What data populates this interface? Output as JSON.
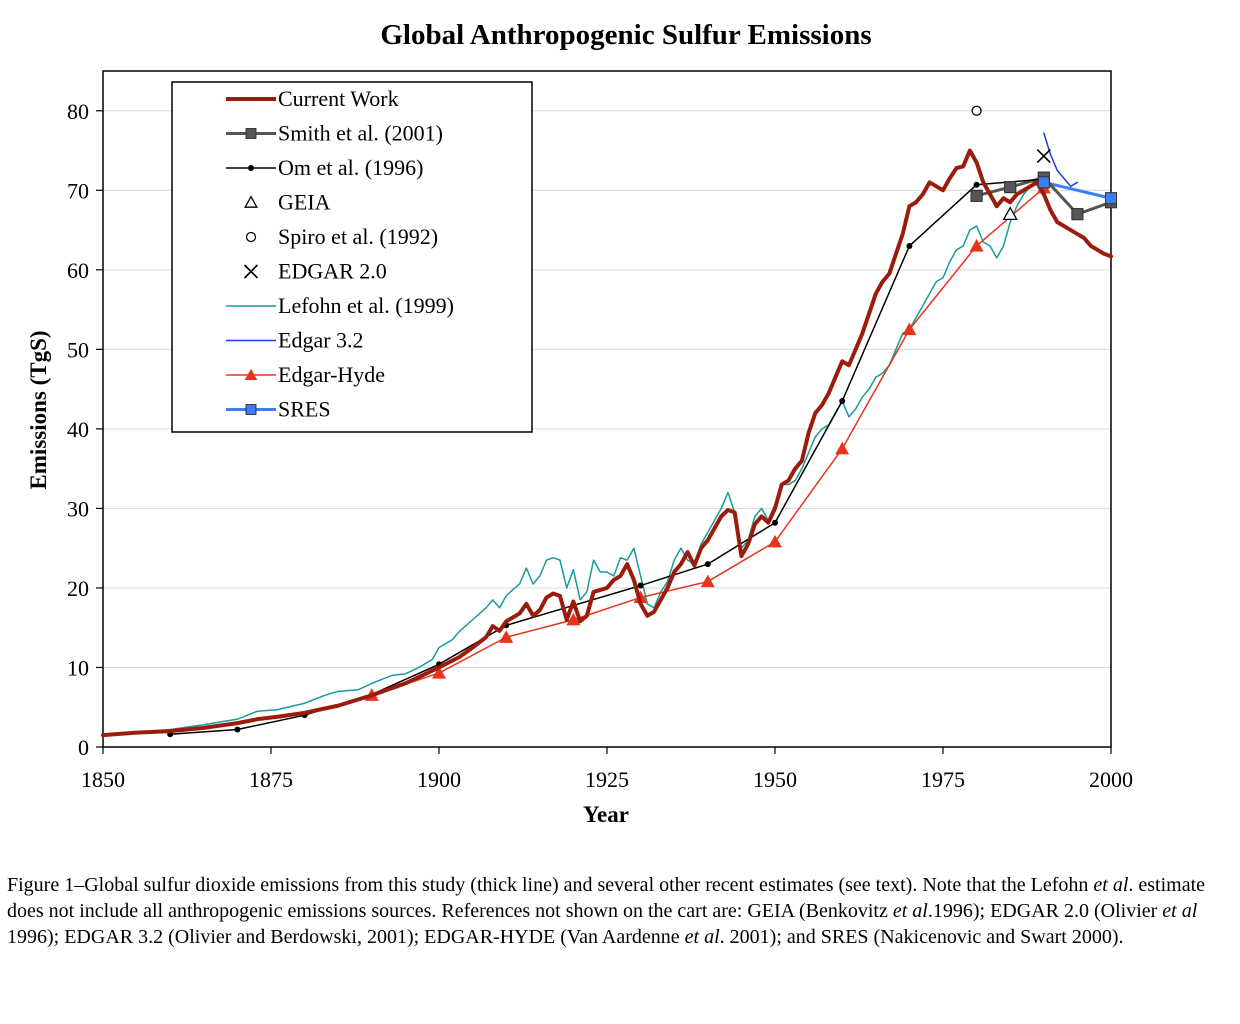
{
  "chart_data": {
    "type": "line",
    "title": "Global Anthropogenic Sulfur Emissions",
    "xlabel": "Year",
    "ylabel": "Emissions (TgS)",
    "xlim": [
      1850,
      2000
    ],
    "ylim": [
      0,
      85
    ],
    "xticks": [
      1850,
      1875,
      1900,
      1925,
      1950,
      1975,
      2000
    ],
    "yticks": [
      0,
      10,
      20,
      30,
      40,
      50,
      60,
      70,
      80
    ],
    "grid": "horizontal",
    "legend_position": "top-left",
    "series": [
      {
        "name": "Current Work",
        "style": "thick-line",
        "color": "#9b1c0c",
        "points": [
          [
            1850,
            1.5
          ],
          [
            1855,
            1.8
          ],
          [
            1860,
            2.0
          ],
          [
            1865,
            2.4
          ],
          [
            1870,
            3.0
          ],
          [
            1873,
            3.5
          ],
          [
            1876,
            3.8
          ],
          [
            1880,
            4.3
          ],
          [
            1885,
            5.2
          ],
          [
            1890,
            6.5
          ],
          [
            1895,
            8.0
          ],
          [
            1900,
            10.0
          ],
          [
            1903,
            11.3
          ],
          [
            1905,
            12.5
          ],
          [
            1907,
            13.8
          ],
          [
            1908,
            15.2
          ],
          [
            1909,
            14.6
          ],
          [
            1910,
            15.8
          ],
          [
            1912,
            16.8
          ],
          [
            1913,
            18.0
          ],
          [
            1914,
            16.5
          ],
          [
            1915,
            17.2
          ],
          [
            1916,
            18.8
          ],
          [
            1917,
            19.3
          ],
          [
            1918,
            19.0
          ],
          [
            1919,
            16.0
          ],
          [
            1920,
            18.3
          ],
          [
            1921,
            15.8
          ],
          [
            1922,
            16.5
          ],
          [
            1923,
            19.5
          ],
          [
            1925,
            20.0
          ],
          [
            1926,
            21.0
          ],
          [
            1927,
            21.5
          ],
          [
            1928,
            23.0
          ],
          [
            1929,
            21.0
          ],
          [
            1930,
            18.0
          ],
          [
            1931,
            16.5
          ],
          [
            1932,
            17.0
          ],
          [
            1933,
            18.5
          ],
          [
            1934,
            20.0
          ],
          [
            1935,
            22.0
          ],
          [
            1936,
            23.0
          ],
          [
            1937,
            24.5
          ],
          [
            1938,
            22.8
          ],
          [
            1939,
            25.0
          ],
          [
            1940,
            26.0
          ],
          [
            1941,
            27.5
          ],
          [
            1942,
            29.0
          ],
          [
            1943,
            29.8
          ],
          [
            1944,
            29.5
          ],
          [
            1945,
            24.0
          ],
          [
            1946,
            25.5
          ],
          [
            1947,
            28.0
          ],
          [
            1948,
            29.0
          ],
          [
            1949,
            28.2
          ],
          [
            1950,
            30.0
          ],
          [
            1951,
            33.0
          ],
          [
            1952,
            33.5
          ],
          [
            1953,
            35.0
          ],
          [
            1954,
            36.0
          ],
          [
            1955,
            39.5
          ],
          [
            1956,
            42.0
          ],
          [
            1957,
            43.0
          ],
          [
            1958,
            44.5
          ],
          [
            1959,
            46.5
          ],
          [
            1960,
            48.5
          ],
          [
            1961,
            48.0
          ],
          [
            1962,
            50.0
          ],
          [
            1963,
            52.0
          ],
          [
            1964,
            54.5
          ],
          [
            1965,
            57.0
          ],
          [
            1966,
            58.5
          ],
          [
            1967,
            59.5
          ],
          [
            1968,
            62.0
          ],
          [
            1969,
            64.5
          ],
          [
            1970,
            68.0
          ],
          [
            1971,
            68.5
          ],
          [
            1972,
            69.5
          ],
          [
            1973,
            71.0
          ],
          [
            1974,
            70.5
          ],
          [
            1975,
            70.0
          ],
          [
            1976,
            71.5
          ],
          [
            1977,
            72.8
          ],
          [
            1978,
            73.0
          ],
          [
            1979,
            75.0
          ],
          [
            1980,
            73.5
          ],
          [
            1981,
            71.0
          ],
          [
            1982,
            69.5
          ],
          [
            1983,
            68.0
          ],
          [
            1984,
            69.0
          ],
          [
            1985,
            68.5
          ],
          [
            1986,
            69.5
          ],
          [
            1987,
            70.0
          ],
          [
            1988,
            70.5
          ],
          [
            1989,
            71.0
          ],
          [
            1990,
            69.5
          ],
          [
            1991,
            67.5
          ],
          [
            1992,
            66.0
          ],
          [
            1993,
            65.5
          ],
          [
            1994,
            65.0
          ],
          [
            1995,
            64.5
          ],
          [
            1996,
            64.0
          ],
          [
            1997,
            63.0
          ],
          [
            1998,
            62.5
          ],
          [
            1999,
            62.0
          ],
          [
            2000,
            61.7
          ]
        ]
      },
      {
        "name": "Smith et al. (2001)",
        "style": "line-square",
        "color": "#555555",
        "points": [
          [
            1980,
            69.3
          ],
          [
            1985,
            70.4
          ],
          [
            1990,
            71.6
          ],
          [
            1995,
            67.0
          ],
          [
            2000,
            68.5
          ]
        ]
      },
      {
        "name": "Om et al. (1996)",
        "style": "line-dot",
        "color": "#000000",
        "points": [
          [
            1860,
            1.6
          ],
          [
            1870,
            2.2
          ],
          [
            1880,
            4.0
          ],
          [
            1890,
            6.6
          ],
          [
            1900,
            10.4
          ],
          [
            1910,
            15.3
          ],
          [
            1920,
            17.8
          ],
          [
            1930,
            20.3
          ],
          [
            1940,
            23.0
          ],
          [
            1950,
            28.2
          ],
          [
            1960,
            43.5
          ],
          [
            1970,
            63.0
          ],
          [
            1980,
            70.7
          ],
          [
            1990,
            71.4
          ]
        ]
      },
      {
        "name": "GEIA",
        "style": "open-triangle",
        "color": "#000000",
        "points": [
          [
            1985,
            67.0
          ]
        ]
      },
      {
        "name": "Spiro et al. (1992)",
        "style": "open-circle",
        "color": "#000000",
        "points": [
          [
            1980,
            80.0
          ]
        ]
      },
      {
        "name": "EDGAR 2.0",
        "style": "cross",
        "color": "#000000",
        "points": [
          [
            1990,
            74.3
          ]
        ]
      },
      {
        "name": "Lefohn et al. (1999)",
        "style": "thin-line",
        "color": "#1a9b9b",
        "points": [
          [
            1850,
            1.4
          ],
          [
            1855,
            1.8
          ],
          [
            1860,
            2.2
          ],
          [
            1865,
            2.8
          ],
          [
            1870,
            3.5
          ],
          [
            1873,
            4.5
          ],
          [
            1876,
            4.7
          ],
          [
            1880,
            5.5
          ],
          [
            1883,
            6.5
          ],
          [
            1885,
            7.0
          ],
          [
            1888,
            7.2
          ],
          [
            1890,
            8.0
          ],
          [
            1893,
            9.0
          ],
          [
            1895,
            9.2
          ],
          [
            1897,
            10.0
          ],
          [
            1899,
            11.0
          ],
          [
            1900,
            12.5
          ],
          [
            1902,
            13.5
          ],
          [
            1903,
            14.5
          ],
          [
            1905,
            16.0
          ],
          [
            1907,
            17.5
          ],
          [
            1908,
            18.5
          ],
          [
            1909,
            17.5
          ],
          [
            1910,
            19.0
          ],
          [
            1911,
            19.8
          ],
          [
            1912,
            20.5
          ],
          [
            1913,
            22.5
          ],
          [
            1914,
            20.5
          ],
          [
            1915,
            21.5
          ],
          [
            1916,
            23.5
          ],
          [
            1917,
            23.8
          ],
          [
            1918,
            23.5
          ],
          [
            1919,
            20.0
          ],
          [
            1920,
            22.3
          ],
          [
            1921,
            18.5
          ],
          [
            1922,
            19.5
          ],
          [
            1923,
            23.5
          ],
          [
            1924,
            22.0
          ],
          [
            1925,
            22.0
          ],
          [
            1926,
            21.5
          ],
          [
            1927,
            23.8
          ],
          [
            1928,
            23.5
          ],
          [
            1929,
            25.0
          ],
          [
            1930,
            21.5
          ],
          [
            1931,
            18.0
          ],
          [
            1932,
            17.5
          ],
          [
            1933,
            19.5
          ],
          [
            1934,
            20.8
          ],
          [
            1935,
            23.5
          ],
          [
            1936,
            25.0
          ],
          [
            1937,
            23.5
          ],
          [
            1938,
            23.0
          ],
          [
            1939,
            25.5
          ],
          [
            1940,
            27.0
          ],
          [
            1941,
            28.5
          ],
          [
            1942,
            30.0
          ],
          [
            1943,
            32.0
          ],
          [
            1944,
            29.5
          ],
          [
            1945,
            25.0
          ],
          [
            1946,
            26.0
          ],
          [
            1947,
            29.0
          ],
          [
            1948,
            30.0
          ],
          [
            1949,
            28.5
          ],
          [
            1950,
            30.5
          ],
          [
            1951,
            33.0
          ],
          [
            1952,
            33.0
          ],
          [
            1953,
            33.5
          ],
          [
            1954,
            35.0
          ],
          [
            1955,
            37.0
          ],
          [
            1956,
            39.0
          ],
          [
            1957,
            40.0
          ],
          [
            1958,
            40.5
          ],
          [
            1959,
            42.0
          ],
          [
            1960,
            43.5
          ],
          [
            1961,
            41.5
          ],
          [
            1962,
            42.5
          ],
          [
            1963,
            44.0
          ],
          [
            1964,
            45.0
          ],
          [
            1965,
            46.5
          ],
          [
            1966,
            47.0
          ],
          [
            1967,
            48.0
          ],
          [
            1968,
            50.0
          ],
          [
            1969,
            52.0
          ],
          [
            1970,
            52.5
          ],
          [
            1971,
            54.0
          ],
          [
            1972,
            55.5
          ],
          [
            1973,
            57.0
          ],
          [
            1974,
            58.5
          ],
          [
            1975,
            59.0
          ],
          [
            1976,
            61.0
          ],
          [
            1977,
            62.5
          ],
          [
            1978,
            63.0
          ],
          [
            1979,
            65.0
          ],
          [
            1980,
            65.5
          ],
          [
            1981,
            63.5
          ],
          [
            1982,
            63.0
          ],
          [
            1983,
            61.5
          ],
          [
            1984,
            63.0
          ],
          [
            1985,
            66.0
          ],
          [
            1986,
            68.0
          ],
          [
            1987,
            69.5
          ],
          [
            1988,
            70.5
          ],
          [
            1989,
            71.5
          ],
          [
            1990,
            71.0
          ]
        ]
      },
      {
        "name": "Edgar 3.2",
        "style": "thin-line",
        "color": "#1a3fe0",
        "points": [
          [
            1990,
            77.2
          ],
          [
            1991,
            74.5
          ],
          [
            1992,
            72.5
          ],
          [
            1993,
            71.5
          ],
          [
            1994,
            70.5
          ],
          [
            1995,
            71.0
          ]
        ]
      },
      {
        "name": "Edgar-Hyde",
        "style": "line-triangle",
        "color": "#e8341c",
        "points": [
          [
            1890,
            6.5
          ],
          [
            1900,
            9.3
          ],
          [
            1910,
            13.8
          ],
          [
            1920,
            16.0
          ],
          [
            1930,
            18.8
          ],
          [
            1940,
            20.8
          ],
          [
            1950,
            25.8
          ],
          [
            1960,
            37.5
          ],
          [
            1970,
            52.5
          ],
          [
            1980,
            63.0
          ],
          [
            1990,
            70.3
          ]
        ]
      },
      {
        "name": "SRES",
        "style": "line-square",
        "color": "#3b7ff5",
        "points": [
          [
            1990,
            71.0
          ],
          [
            2000,
            69.0
          ]
        ]
      }
    ]
  },
  "caption": {
    "p1": "Figure 1–Global sulfur dioxide emissions from this study (thick line) and several other recent estimates (see text). Note that the Lefohn ",
    "etal1": "et al",
    "p2": ". estimate does not include all anthropogenic emissions sources.  References not shown on the cart are: GEIA (Benkovitz ",
    "etal2": "et al",
    "p3": ".1996); EDGAR 2.0 (Olivier ",
    "etal3": "et al",
    "p4": " 1996); EDGAR 3.2 (Olivier and Berdowski, 2001); EDGAR-HYDE (Van Aardenne ",
    "etal4": "et al",
    "p5": ". 2001); and SRES (Nakicenovic and Swart 2000)."
  }
}
